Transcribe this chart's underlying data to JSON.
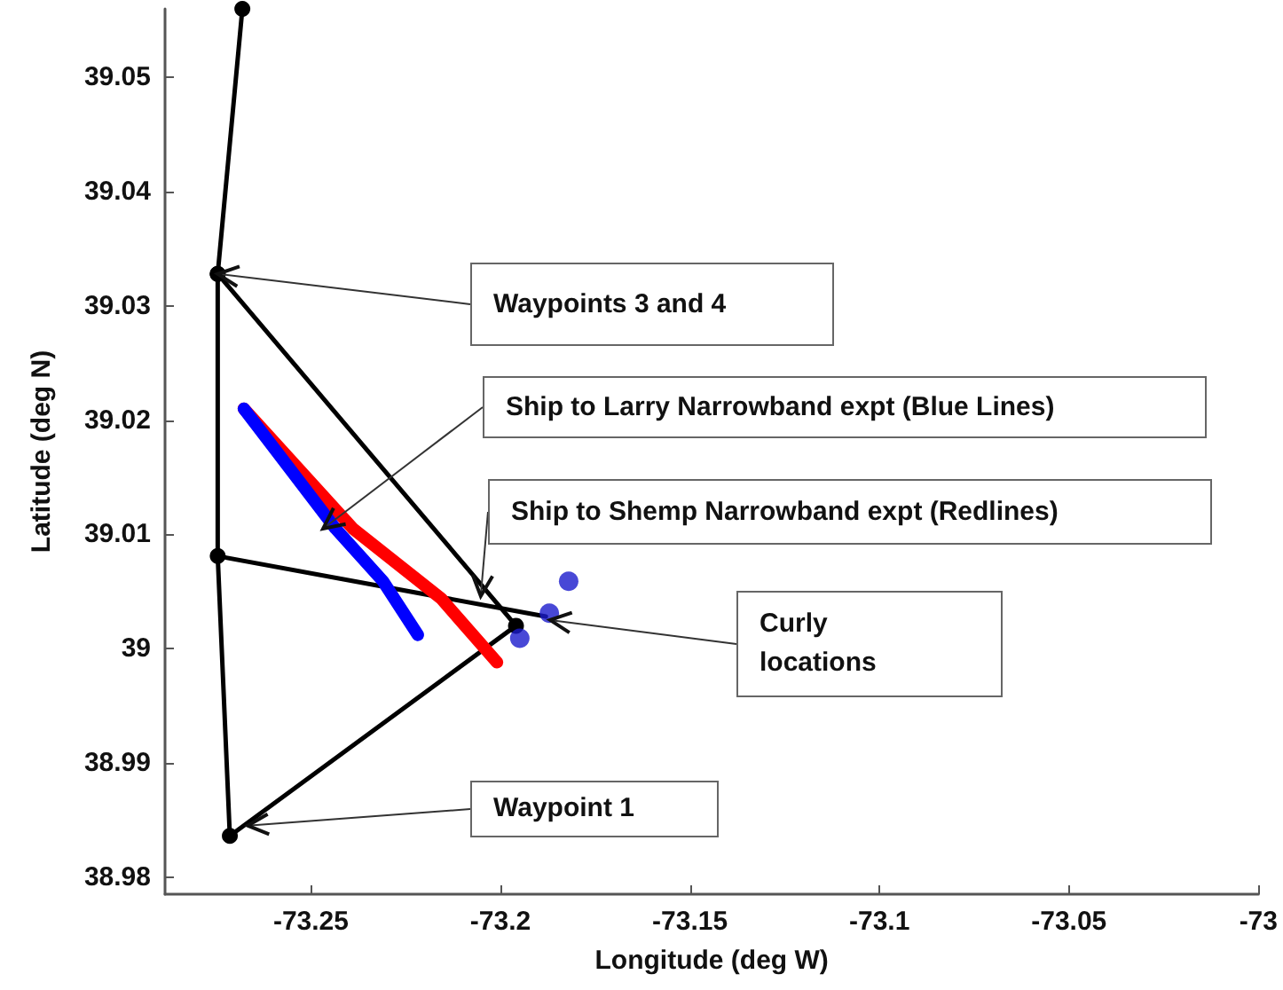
{
  "chart_data": {
    "type": "line",
    "xlabel": "Longitude (deg W)",
    "ylabel": "Latitude (deg N)",
    "xlim": [
      -73.2885,
      -73.0
    ],
    "xticks": [
      -73.25,
      -73.2,
      -73.15,
      -73.1,
      -73.05,
      -73
    ],
    "ylim": [
      38.9785,
      39.056
    ],
    "yticks": [
      38.98,
      38.99,
      39,
      39.01,
      39.02,
      39.03,
      39.04,
      39.05
    ],
    "grid": false,
    "series": [
      {
        "color": "#000000",
        "marker": "circle",
        "x": [
          -73.2681,
          -73.2746,
          -73.2746,
          -73.2714,
          -73.1959,
          -73.2746
        ],
        "values": [
          39.056,
          39.0328,
          39.0081,
          38.9836,
          39.002,
          39.0328
        ]
      },
      {
        "color": "#000000",
        "marker": "none",
        "x": [
          -73.2746,
          -73.188
        ],
        "values": [
          39.0081,
          39.0028
        ]
      },
      {
        "color": "#ff0000",
        "marker": "none",
        "x": [
          -73.2677,
          -73.2389,
          -73.2157,
          -73.2009
        ],
        "values": [
          39.021,
          39.0105,
          39.0044,
          38.9988
        ]
      },
      {
        "color": "#0000ff",
        "marker": "none",
        "x": [
          -73.2677,
          -73.2435,
          -73.231,
          -73.2218
        ],
        "values": [
          39.021,
          39.0105,
          39.0059,
          39.0012
        ]
      },
      {
        "type": "scatter",
        "color": "#1a1acc",
        "marker": "circle",
        "x": [
          -73.1949,
          -73.1871,
          -73.182
        ],
        "values": [
          39.0009,
          39.0031,
          39.0059
        ]
      }
    ],
    "annotations": [
      {
        "text": "Waypoints 3 and 4",
        "x": -73.2746,
        "y": 39.0328
      },
      {
        "text": "Ship to Larry Narrowband expt (Blue Lines)",
        "x": -73.2468,
        "y": 39.0105
      },
      {
        "text": "Ship to Shemp Narrowband expt (Redlines)",
        "x": -73.2052,
        "y": 39.0046
      },
      {
        "text": "Curly\nlocations",
        "x": -73.1869,
        "y": 39.0025
      },
      {
        "text": "Waypoint 1",
        "x": -73.2667,
        "y": 38.9845
      }
    ]
  }
}
